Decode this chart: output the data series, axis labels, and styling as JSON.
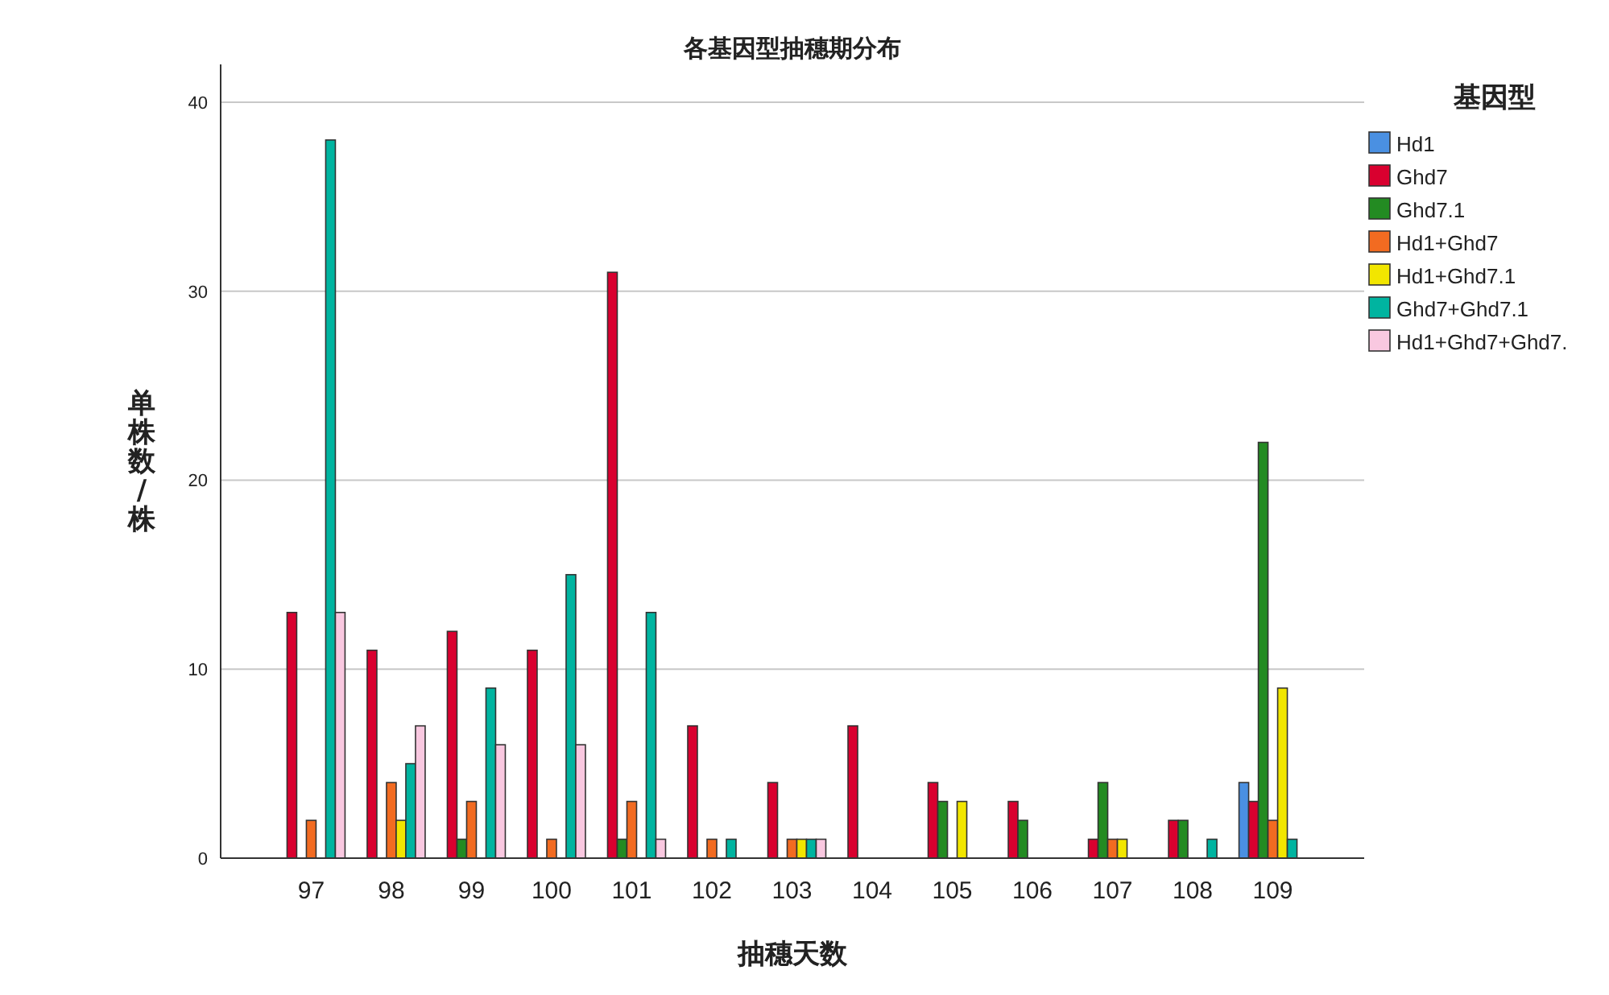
{
  "chart_data": {
    "type": "bar",
    "title": "各基因型抽穗期分布",
    "xlabel": "抽穗天数",
    "ylabel": "单株数/株",
    "legend_title": "基因型",
    "categories": [
      "97",
      "98",
      "99",
      "100",
      "101",
      "102",
      "103",
      "104",
      "105",
      "106",
      "107",
      "108",
      "109"
    ],
    "series": [
      {
        "name": "Hd1",
        "color": "#4a90e2",
        "values": [
          null,
          null,
          null,
          null,
          null,
          null,
          null,
          null,
          null,
          null,
          null,
          null,
          4
        ]
      },
      {
        "name": "Ghd7",
        "color": "#d9002f",
        "values": [
          13,
          11,
          12,
          11,
          31,
          7,
          4,
          7,
          4,
          3,
          1,
          2,
          3
        ]
      },
      {
        "name": "Ghd7.1",
        "color": "#238b22",
        "values": [
          null,
          null,
          1,
          null,
          1,
          null,
          null,
          null,
          3,
          2,
          4,
          2,
          22
        ]
      },
      {
        "name": "Hd1+Ghd7",
        "color": "#f26b21",
        "values": [
          2,
          4,
          3,
          1,
          3,
          1,
          1,
          null,
          null,
          null,
          1,
          null,
          2
        ]
      },
      {
        "name": "Hd1+Ghd7.1",
        "color": "#f2e600",
        "values": [
          null,
          2,
          null,
          null,
          null,
          null,
          1,
          null,
          3,
          null,
          1,
          null,
          9
        ]
      },
      {
        "name": "Ghd7+Ghd7.1",
        "color": "#00b4a0",
        "values": [
          38,
          5,
          9,
          15,
          13,
          1,
          1,
          null,
          null,
          null,
          null,
          1,
          1
        ]
      },
      {
        "name": "Hd1+Ghd7+Ghd7.",
        "color": "#f9c8e0",
        "values": [
          13,
          7,
          6,
          6,
          1,
          null,
          1,
          null,
          null,
          null,
          null,
          null,
          null
        ]
      }
    ],
    "ylim": [
      0,
      42
    ],
    "yticks": [
      0,
      10,
      20,
      30,
      40
    ],
    "grid": "y",
    "legend": "top right"
  }
}
